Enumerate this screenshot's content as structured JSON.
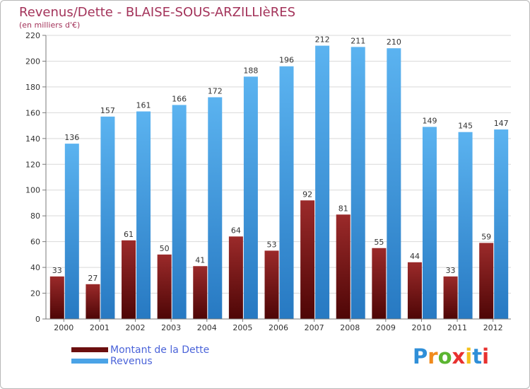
{
  "header": {
    "title": "Revenus/Dette - BLAISE-SOUS-ARZILLIèRES",
    "subtitle": "(en milliers d'€)"
  },
  "chart_data": {
    "type": "bar",
    "title": "Revenus/Dette - BLAISE-SOUS-ARZILLIèRES",
    "ylabel": "(en milliers d'€)",
    "xlabel": "",
    "ylim": [
      0,
      220
    ],
    "yticks": [
      0,
      20,
      40,
      60,
      80,
      100,
      120,
      140,
      160,
      180,
      200,
      220
    ],
    "grid": true,
    "legend_position": "bottom-left",
    "categories": [
      "2000",
      "2001",
      "2002",
      "2003",
      "2004",
      "2005",
      "2006",
      "2007",
      "2008",
      "2009",
      "2010",
      "2011",
      "2012"
    ],
    "series": [
      {
        "name": "Montant de la Dette",
        "color": "#8b1a1a",
        "values": [
          33,
          27,
          61,
          50,
          41,
          64,
          53,
          92,
          81,
          55,
          44,
          33,
          59
        ]
      },
      {
        "name": "Revenus",
        "color": "#4aa3e6",
        "values": [
          136,
          157,
          161,
          166,
          172,
          188,
          196,
          212,
          211,
          210,
          149,
          145,
          147
        ]
      }
    ]
  },
  "legend": {
    "items": [
      {
        "label": "Montant de la Dette",
        "color": "#6b0f0f"
      },
      {
        "label": "Revenus",
        "color": "#4aa3e6"
      }
    ]
  },
  "logo": {
    "letters": [
      "P",
      "r",
      "o",
      "x",
      "i",
      "t",
      "i"
    ],
    "colors": [
      "#2f8fd8",
      "#f08a1c",
      "#5bb531",
      "#e8312f",
      "#f4c11a",
      "#2f8fd8",
      "#e8312f"
    ]
  }
}
